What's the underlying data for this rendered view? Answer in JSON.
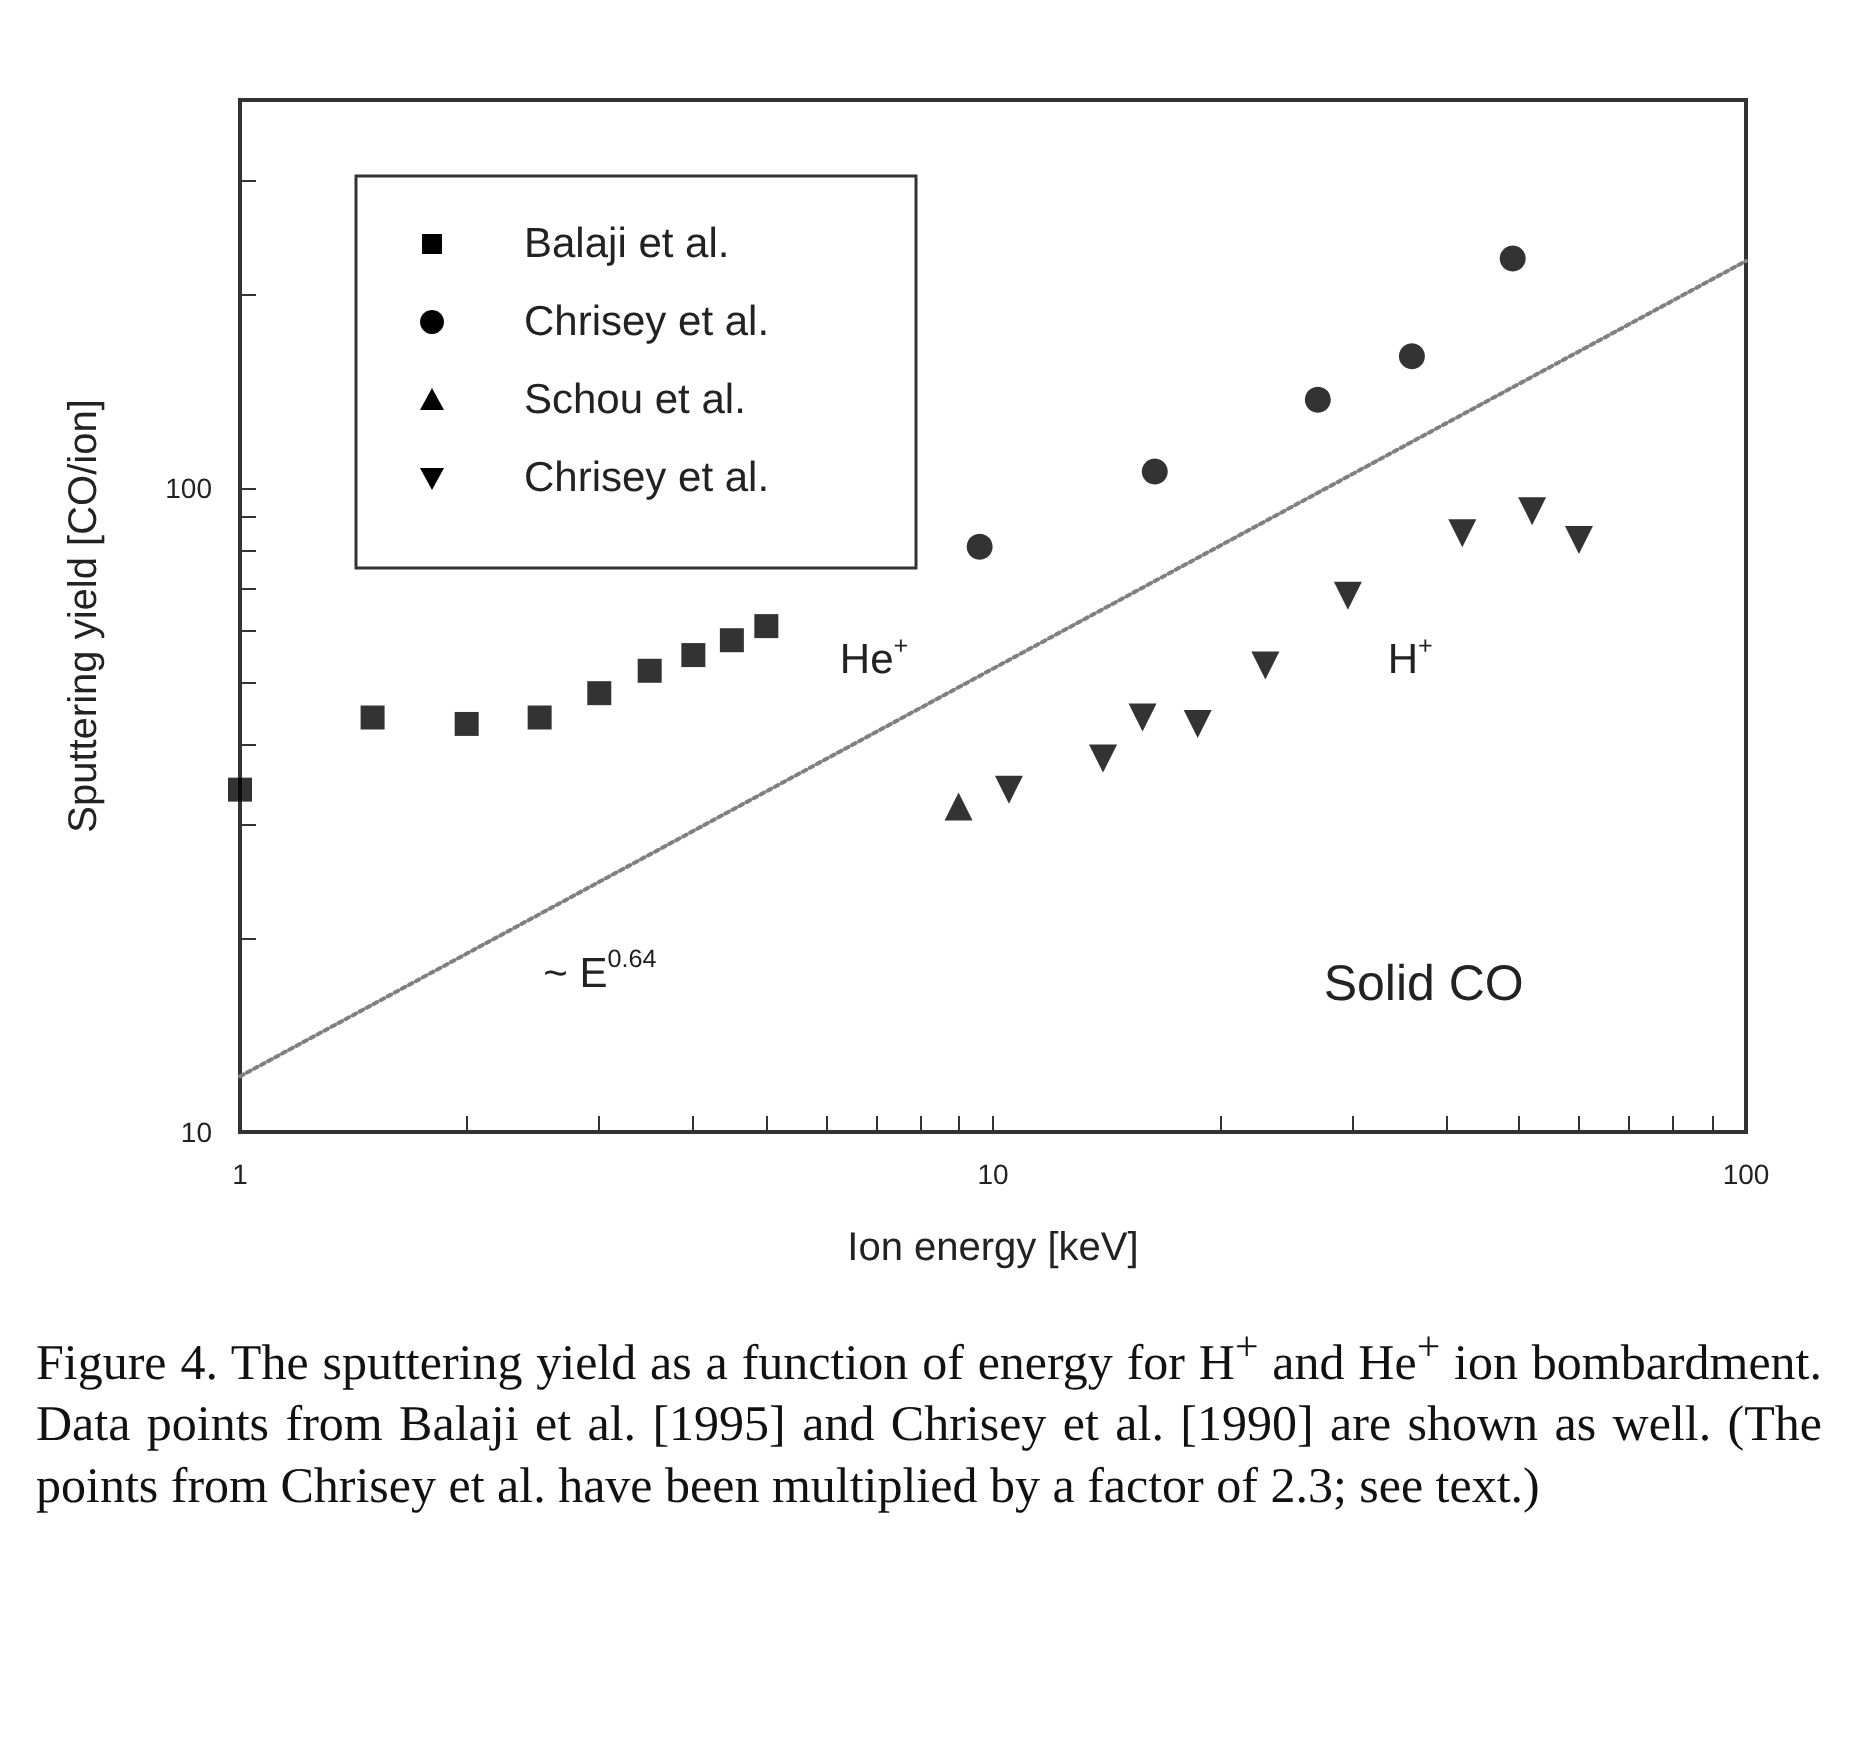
{
  "chart_data": {
    "type": "scatter",
    "xlabel": "Ion energy [keV]",
    "ylabel": "Sputtering yield [CO/ion]",
    "log": "xy",
    "legend": "top left",
    "xlim": [
      1,
      100
    ],
    "xticks": [
      1,
      {
        "value": 2,
        "label": null
      },
      {
        "value": 3,
        "label": null
      },
      {
        "value": 4,
        "label": null
      },
      {
        "value": 5,
        "label": null
      },
      {
        "value": 6,
        "label": null
      },
      {
        "value": 7,
        "label": null
      },
      {
        "value": 8,
        "label": null
      },
      {
        "value": 9,
        "label": null
      },
      10,
      {
        "value": 20,
        "label": null
      },
      {
        "value": 30,
        "label": null
      },
      {
        "value": 40,
        "label": null
      },
      {
        "value": 50,
        "label": null
      },
      {
        "value": 60,
        "label": null
      },
      {
        "value": 70,
        "label": null
      },
      {
        "value": 80,
        "label": null
      },
      {
        "value": 90,
        "label": null
      },
      100
    ],
    "ylim": [
      10,
      400
    ],
    "yticks": [
      10,
      {
        "value": 20,
        "label": null
      },
      {
        "value": 30,
        "label": null
      },
      {
        "value": 40,
        "label": null
      },
      {
        "value": 50,
        "label": null
      },
      {
        "value": 60,
        "label": null
      },
      {
        "value": 70,
        "label": null
      },
      {
        "value": 80,
        "label": null
      },
      {
        "value": 90,
        "label": null
      },
      100,
      {
        "value": 200,
        "label": null
      },
      {
        "value": 300,
        "label": null
      }
    ],
    "series": [
      {
        "name": "Balaji et al.",
        "color": "#000000",
        "marker": "square",
        "x": [
          1.0,
          1.5,
          2.0,
          2.5,
          3.0,
          3.5,
          4.0,
          4.5,
          5.0
        ],
        "values": [
          34,
          44,
          43,
          44,
          48,
          52,
          55,
          58,
          61
        ]
      },
      {
        "name": "Chrisey et al.",
        "color": "#000000",
        "marker": "circle",
        "x": [
          9.6,
          16.4,
          27,
          36,
          49
        ],
        "values": [
          81,
          106,
          137,
          160,
          227
        ]
      },
      {
        "name": "Schou et al.",
        "color": "#000000",
        "marker": "triangle",
        "x": [
          9.0
        ],
        "values": [
          32
        ]
      },
      {
        "name": "Chrisey et al.",
        "color": "#000000",
        "marker": "triangle-down",
        "x": [
          10.5,
          14.0,
          15.8,
          18.7,
          23,
          29.6,
          42,
          52,
          60
        ],
        "values": [
          34,
          38,
          44,
          43,
          53,
          68,
          85,
          92,
          83
        ]
      },
      {
        "type": "line",
        "color": "#808080",
        "marker": "none",
        "line_style": "dotted",
        "x": [
          1,
          100
        ],
        "values": [
          12.2,
          225
        ]
      }
    ],
    "annotations": [
      "He$^{+}$",
      "H$^{+}$",
      "~ E$^{0.64}$",
      "Solid CO",
      "Figure 4.  The sputtering yield as a function of energy for H$^{+}$ and He$^{+}$ ion bombardment. Data points from Balaji et al. [1995] and Chrisey et al. [1990] are shown as well. (The points from Chrisey et al. have been multiplied by a factor of 2.3; see text.)"
    ]
  }
}
